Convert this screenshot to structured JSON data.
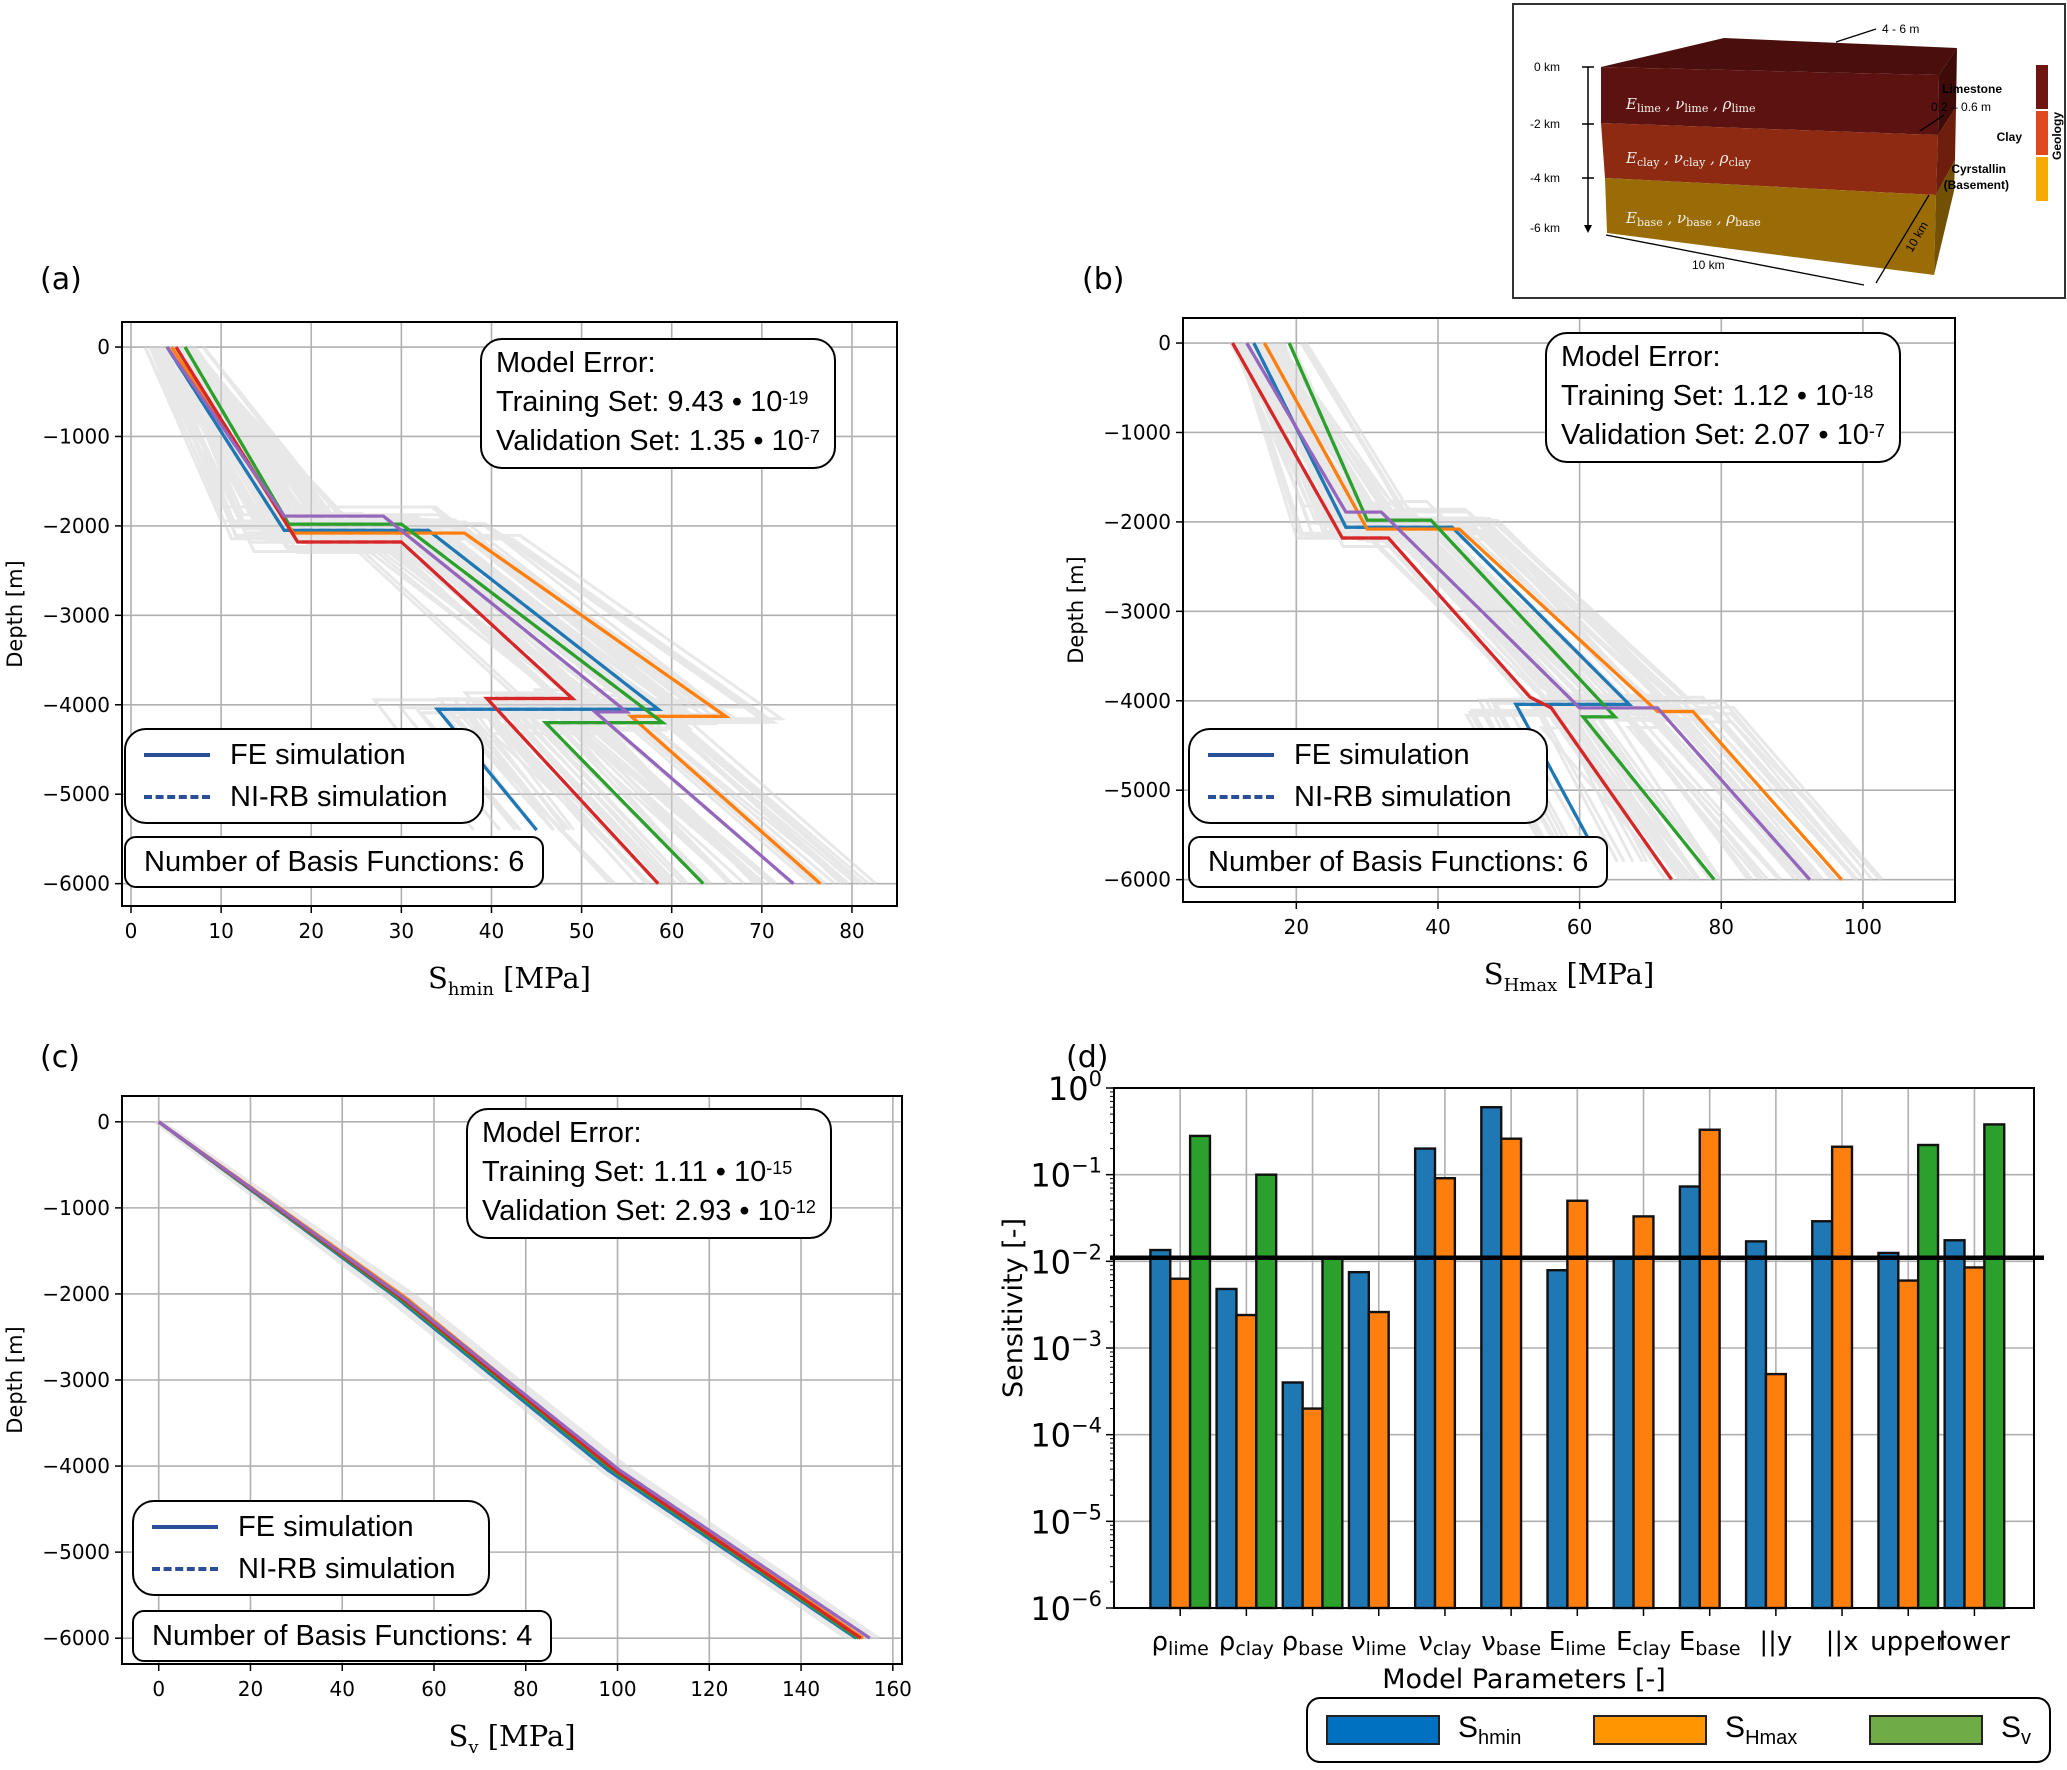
{
  "panels": {
    "a": {
      "label": "(a)"
    },
    "b": {
      "label": "(b)"
    },
    "c": {
      "label": "(c)"
    },
    "d": {
      "label": "(d)"
    }
  },
  "inset": {
    "depth_ticks": [
      "0 km",
      "-2 km",
      "-4 km",
      "-6 km"
    ],
    "top_thickness": "4 - 6 m",
    "interface_thickness": "0.2 – 0.6 m",
    "width_x": "10 km",
    "width_y": "10 km",
    "layers": [
      {
        "name": "Limestone",
        "params": "E_lime , ν_lime , ρ_lime",
        "E": "E",
        "nu": "ν",
        "rho": "ρ",
        "sub": "lime",
        "color": "#5c1210",
        "legend_color": "#6e1612"
      },
      {
        "name": "Clay",
        "params": "E_clay , ν_clay , ρ_clay",
        "E": "E",
        "nu": "ν",
        "rho": "ρ",
        "sub": "clay",
        "color": "#8e2a12",
        "legend_color": "#e0481f"
      },
      {
        "name": "Cyrstallin (Basement)",
        "name_line1": "Cyrstallin",
        "name_line2": "(Basement)",
        "params": "E_base , ν_base , ρ_base",
        "E": "E",
        "nu": "ν",
        "rho": "ρ",
        "sub": "base",
        "color": "#9a6c06",
        "legend_color": "#f6ab00"
      }
    ],
    "legend_title": "Geology"
  },
  "legend": {
    "fe": "FE simulation",
    "nirb": "NI-RB simulation",
    "error_title": "Model Error:",
    "training_prefix": "Training Set: ",
    "validation_prefix": "Validation Set: ",
    "dot": " • ",
    "basis_prefix": "Number of Basis Functions: "
  },
  "chart_data": [
    {
      "id": "a",
      "type": "line",
      "title": "",
      "xlabel": "S_hmin [MPa]",
      "xlabel_main": "S",
      "xlabel_sub": "hmin",
      "xlabel_unit": " [MPa]",
      "ylabel": "Depth [m]",
      "xlim": [
        -1,
        85
      ],
      "ylim": [
        -6250,
        280
      ],
      "xticks": [
        0,
        10,
        20,
        30,
        40,
        50,
        60,
        70,
        80
      ],
      "yticks": [
        0,
        -1000,
        -2000,
        -3000,
        -4000,
        -5000,
        -6000
      ],
      "grid": true,
      "training_error": {
        "mantissa": "9.43",
        "exponent": "-19"
      },
      "validation_error": {
        "mantissa": "1.35",
        "exponent": "-7"
      },
      "basis_functions": "6",
      "series": [
        {
          "name": "blue",
          "color": "#1f77b4",
          "points": [
            [
              4,
              0
            ],
            [
              17,
              -2050
            ],
            [
              33,
              -2050
            ],
            [
              58.5,
              -4050
            ],
            [
              34,
              -4050
            ],
            [
              45,
              -5400
            ]
          ]
        },
        {
          "name": "orange",
          "color": "#ff7f0e",
          "points": [
            [
              4.5,
              0
            ],
            [
              18,
              -2080
            ],
            [
              37,
              -2080
            ],
            [
              66,
              -4130
            ],
            [
              55.5,
              -4130
            ],
            [
              76.5,
              -6000
            ]
          ]
        },
        {
          "name": "green",
          "color": "#2ca02c",
          "points": [
            [
              6,
              0
            ],
            [
              17.5,
              -1980
            ],
            [
              30,
              -1980
            ],
            [
              59,
              -4200
            ],
            [
              46,
              -4200
            ],
            [
              63.5,
              -6000
            ]
          ]
        },
        {
          "name": "red",
          "color": "#d62728",
          "points": [
            [
              5,
              0
            ],
            [
              18.5,
              -2180
            ],
            [
              30,
              -2180
            ],
            [
              49,
              -3930
            ],
            [
              39.5,
              -3930
            ],
            [
              58.5,
              -6000
            ]
          ]
        },
        {
          "name": "purple",
          "color": "#9467bd",
          "points": [
            [
              4,
              0
            ],
            [
              17,
              -1890
            ],
            [
              28,
              -1890
            ],
            [
              55,
              -4080
            ],
            [
              51.5,
              -4080
            ],
            [
              73.5,
              -6000
            ]
          ]
        }
      ]
    },
    {
      "id": "b",
      "type": "line",
      "title": "",
      "xlabel": "S_Hmax [MPa]",
      "xlabel_main": "S",
      "xlabel_sub": "Hmax",
      "xlabel_unit": " [MPa]",
      "ylabel": "Depth [m]",
      "xlim": [
        4,
        113
      ],
      "ylim": [
        -6250,
        280
      ],
      "xticks": [
        20,
        40,
        60,
        80,
        100
      ],
      "yticks": [
        0,
        -1000,
        -2000,
        -3000,
        -4000,
        -5000,
        -6000
      ],
      "grid": true,
      "training_error": {
        "mantissa": "1.12",
        "exponent": "-18"
      },
      "validation_error": {
        "mantissa": "2.07",
        "exponent": "-7"
      },
      "basis_functions": "6",
      "series": [
        {
          "name": "blue",
          "color": "#1f77b4",
          "points": [
            [
              14,
              0
            ],
            [
              27,
              -2060
            ],
            [
              42,
              -2060
            ],
            [
              67,
              -4040
            ],
            [
              51,
              -4040
            ],
            [
              63,
              -5800
            ]
          ]
        },
        {
          "name": "orange",
          "color": "#ff7f0e",
          "points": [
            [
              15.5,
              0
            ],
            [
              30,
              -2080
            ],
            [
              43,
              -2080
            ],
            [
              71,
              -4120
            ],
            [
              76,
              -4120
            ],
            [
              97,
              -6000
            ]
          ]
        },
        {
          "name": "green",
          "color": "#2ca02c",
          "points": [
            [
              19,
              0
            ],
            [
              30,
              -1980
            ],
            [
              39,
              -1980
            ],
            [
              65,
              -4180
            ],
            [
              60.5,
              -4180
            ],
            [
              79,
              -6000
            ]
          ]
        },
        {
          "name": "red",
          "color": "#d62728",
          "points": [
            [
              11,
              0
            ],
            [
              26.5,
              -2180
            ],
            [
              33,
              -2180
            ],
            [
              53,
              -3960
            ],
            [
              56,
              -4080
            ],
            [
              73,
              -6000
            ]
          ]
        },
        {
          "name": "purple",
          "color": "#9467bd",
          "points": [
            [
              13,
              0
            ],
            [
              27,
              -1890
            ],
            [
              32,
              -1890
            ],
            [
              60,
              -4080
            ],
            [
              71,
              -4080
            ],
            [
              92.5,
              -6000
            ]
          ]
        }
      ]
    },
    {
      "id": "c",
      "type": "line",
      "title": "",
      "xlabel": "S_v [MPa]",
      "xlabel_main": "S",
      "xlabel_sub": "v",
      "xlabel_unit": " [MPa]",
      "ylabel": "Depth [m]",
      "xlim": [
        -8,
        162
      ],
      "ylim": [
        -6300,
        300
      ],
      "xticks": [
        0,
        20,
        40,
        60,
        80,
        100,
        120,
        140,
        160
      ],
      "yticks": [
        0,
        -1000,
        -2000,
        -3000,
        -4000,
        -5000,
        -6000
      ],
      "grid": true,
      "training_error": {
        "mantissa": "1.11",
        "exponent": "-15"
      },
      "validation_error": {
        "mantissa": "2.93",
        "exponent": "-12"
      },
      "basis_functions": "4",
      "series": [
        {
          "name": "blue",
          "color": "#1f77b4",
          "points": [
            [
              0,
              0
            ],
            [
              52,
              -2050
            ],
            [
              98,
              -4050
            ],
            [
              152,
              -6000
            ]
          ]
        },
        {
          "name": "orange",
          "color": "#ff7f0e",
          "points": [
            [
              0,
              0
            ],
            [
              54,
              -2050
            ],
            [
              100,
              -4050
            ],
            [
              153.5,
              -6000
            ]
          ]
        },
        {
          "name": "green",
          "color": "#2ca02c",
          "points": [
            [
              0,
              0
            ],
            [
              52.5,
              -2050
            ],
            [
              99,
              -4050
            ],
            [
              152.5,
              -6000
            ]
          ]
        },
        {
          "name": "red",
          "color": "#d62728",
          "points": [
            [
              0,
              0
            ],
            [
              53,
              -2050
            ],
            [
              99.5,
              -4050
            ],
            [
              153,
              -6000
            ]
          ]
        },
        {
          "name": "purple",
          "color": "#9467bd",
          "points": [
            [
              0,
              0
            ],
            [
              53.5,
              -2050
            ],
            [
              100.5,
              -4050
            ],
            [
              155,
              -6000
            ]
          ]
        }
      ]
    },
    {
      "id": "d",
      "type": "bar",
      "title": "",
      "xlabel": "Model Parameters [-]",
      "ylabel": "Sensitivity [-]",
      "yscale": "log",
      "ylim": [
        1e-06,
        1
      ],
      "yticks": [
        {
          "base": "10",
          "exp": "0",
          "value": 1
        },
        {
          "base": "10",
          "exp": "−1",
          "value": 0.1
        },
        {
          "base": "10",
          "exp": "−2",
          "value": 0.01
        },
        {
          "base": "10",
          "exp": "−3",
          "value": 0.001
        },
        {
          "base": "10",
          "exp": "−4",
          "value": 0.0001
        },
        {
          "base": "10",
          "exp": "−5",
          "value": 1e-05
        },
        {
          "base": "10",
          "exp": "−6",
          "value": 1e-06
        }
      ],
      "threshold": 0.011,
      "grid": true,
      "legend_position": "bottom",
      "categories": [
        {
          "main": "ρ",
          "sub": "lime"
        },
        {
          "main": "ρ",
          "sub": "clay"
        },
        {
          "main": "ρ",
          "sub": "base"
        },
        {
          "main": "ν",
          "sub": "lime"
        },
        {
          "main": "ν",
          "sub": "clay"
        },
        {
          "main": "ν",
          "sub": "base"
        },
        {
          "main": "E",
          "sub": "lime"
        },
        {
          "main": "E",
          "sub": "clay"
        },
        {
          "main": "E",
          "sub": "base"
        },
        {
          "main": "||y",
          "sub": ""
        },
        {
          "main": "||x",
          "sub": ""
        },
        {
          "main": "upper",
          "sub": ""
        },
        {
          "main": "lower",
          "sub": ""
        }
      ],
      "series": [
        {
          "name": "S_hmin",
          "label_main": "S",
          "label_sub": "hmin",
          "color": "#1f77b4",
          "legend_color": "#0070c0",
          "values": [
            0.0135,
            0.0048,
            0.0004,
            0.0075,
            0.2,
            0.6,
            0.0079,
            0.011,
            0.073,
            0.017,
            0.029,
            0.0125,
            0.0175
          ]
        },
        {
          "name": "S_Hmax",
          "label_main": "S",
          "label_sub": "Hmax",
          "color": "#ff7f0e",
          "legend_color": "#ff9500",
          "values": [
            0.0063,
            0.0024,
            0.0002,
            0.0026,
            0.091,
            0.26,
            0.05,
            0.033,
            0.33,
            0.0005,
            0.21,
            0.006,
            0.0085
          ]
        },
        {
          "name": "S_v",
          "label_main": "S",
          "label_sub": "v",
          "color": "#2ca02c",
          "legend_color": "#6fac46",
          "values": [
            0.28,
            0.1,
            0.011,
            null,
            null,
            null,
            null,
            null,
            null,
            null,
            null,
            0.22,
            0.38
          ]
        }
      ]
    }
  ]
}
